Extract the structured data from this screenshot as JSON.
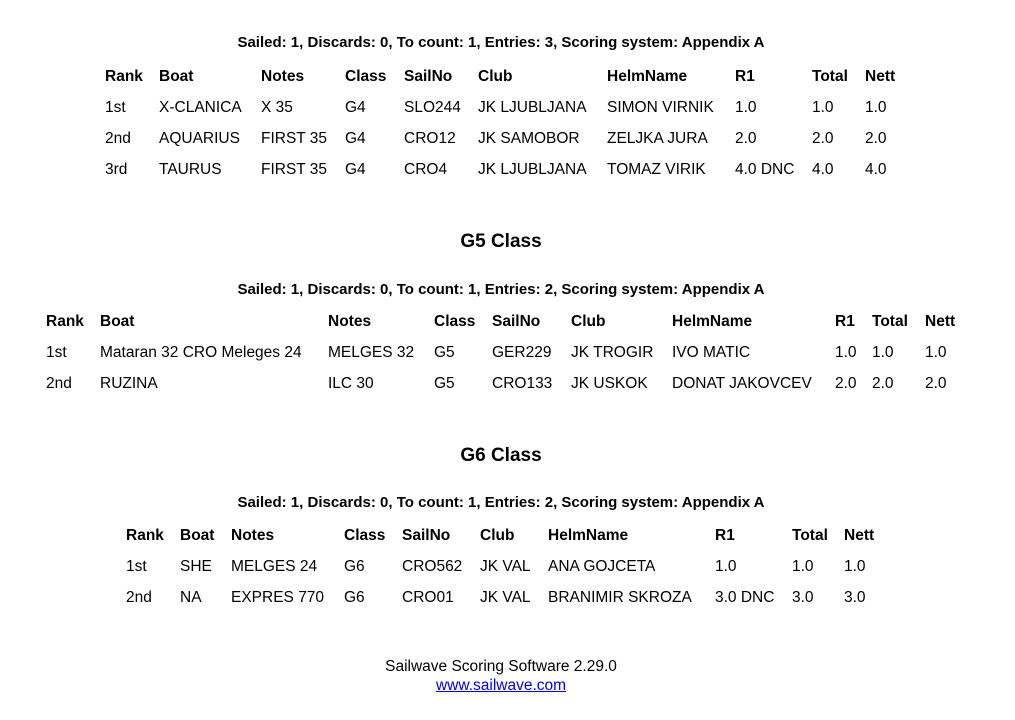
{
  "sections": [
    {
      "heading": "",
      "summary": "Sailed: 1, Discards: 0, To count: 1, Entries: 3, Scoring system: Appendix A",
      "columns": [
        "Rank",
        "Boat",
        "Notes",
        "Class",
        "SailNo",
        "Club",
        "HelmName",
        "R1",
        "Total",
        "Nett"
      ],
      "rows": [
        [
          "1st",
          "X-CLANICA",
          "X 35",
          "G4",
          "SLO244",
          "JK LJUBLJANA",
          "SIMON VIRNIK",
          "1.0",
          "1.0",
          "1.0"
        ],
        [
          "2nd",
          "AQUARIUS",
          "FIRST 35",
          "G4",
          "CRO12",
          "JK SAMOBOR",
          "ZELJKA JURA",
          "2.0",
          "2.0",
          "2.0"
        ],
        [
          "3rd",
          "TAURUS",
          "FIRST 35",
          "G4",
          "CRO4",
          "JK LJUBLJANA",
          "TOMAZ VIRIK",
          "4.0 DNC",
          "4.0",
          "4.0"
        ]
      ]
    },
    {
      "heading": "G5 Class",
      "summary": "Sailed: 1, Discards: 0, To count: 1, Entries: 2, Scoring system: Appendix A",
      "columns": [
        "Rank",
        "Boat",
        "Notes",
        "Class",
        "SailNo",
        "Club",
        "HelmName",
        "R1",
        "Total",
        "Nett"
      ],
      "rows": [
        [
          "1st",
          "Mataran 32 CRO Meleges 24",
          "MELGES 32",
          "G5",
          "GER229",
          "JK TROGIR",
          "IVO MATIC",
          "1.0",
          "1.0",
          "1.0"
        ],
        [
          "2nd",
          "RUZINA",
          "ILC 30",
          "G5",
          "CRO133",
          "JK USKOK",
          "DONAT JAKOVCEV",
          "2.0",
          "2.0",
          "2.0"
        ]
      ]
    },
    {
      "heading": "G6 Class",
      "summary": "Sailed: 1, Discards: 0, To count: 1, Entries: 2, Scoring system: Appendix A",
      "columns": [
        "Rank",
        "Boat",
        "Notes",
        "Class",
        "SailNo",
        "Club",
        "HelmName",
        "R1",
        "Total",
        "Nett"
      ],
      "rows": [
        [
          "1st",
          "SHE",
          "MELGES 24",
          "G6",
          "CRO562",
          "JK VAL",
          "ANA GOJCETA",
          "1.0",
          "1.0",
          "1.0"
        ],
        [
          "2nd",
          "NA",
          "EXPRES 770",
          "G6",
          "CRO01",
          "JK VAL",
          "BRANIMIR SKROZA",
          "3.0 DNC",
          "3.0",
          "3.0"
        ]
      ]
    }
  ],
  "footer": {
    "software": "Sailwave Scoring Software 2.29.0",
    "link": "www.sailwave.com"
  }
}
